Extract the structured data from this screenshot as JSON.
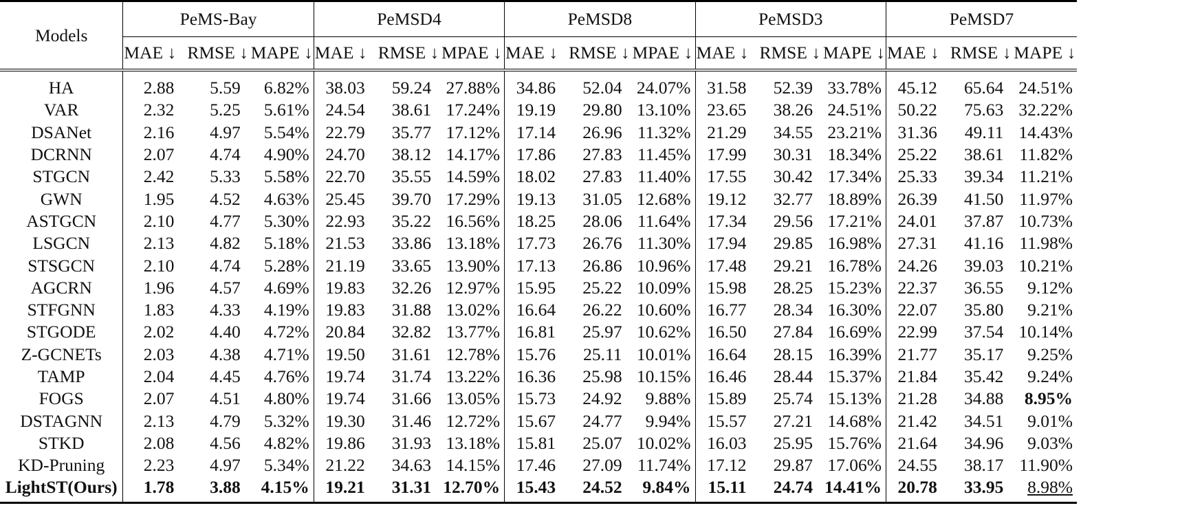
{
  "table": {
    "models_header": "Models",
    "datasets": [
      "PeMS-Bay",
      "PeMSD4",
      "PeMSD8",
      "PeMSD3",
      "PeMSD7"
    ],
    "metrics": [
      [
        "MAE ↓",
        "RMSE ↓",
        "MAPE ↓"
      ],
      [
        "MAE ↓",
        "RMSE ↓",
        "MPAE ↓"
      ],
      [
        "MAE ↓",
        "RMSE ↓",
        "MPAE ↓"
      ],
      [
        "MAE ↓",
        "RMSE ↓",
        "MAPE ↓"
      ],
      [
        "MAE ↓",
        "RMSE ↓",
        "MAPE ↓"
      ]
    ],
    "rows": [
      {
        "model": "HA",
        "values": [
          "2.88",
          "5.59",
          "6.82%",
          "38.03",
          "59.24",
          "27.88%",
          "34.86",
          "52.04",
          "24.07%",
          "31.58",
          "52.39",
          "33.78%",
          "45.12",
          "65.64",
          "24.51%"
        ]
      },
      {
        "model": "VAR",
        "values": [
          "2.32",
          "5.25",
          "5.61%",
          "24.54",
          "38.61",
          "17.24%",
          "19.19",
          "29.80",
          "13.10%",
          "23.65",
          "38.26",
          "24.51%",
          "50.22",
          "75.63",
          "32.22%"
        ]
      },
      {
        "model": "DSANet",
        "values": [
          "2.16",
          "4.97",
          "5.54%",
          "22.79",
          "35.77",
          "17.12%",
          "17.14",
          "26.96",
          "11.32%",
          "21.29",
          "34.55",
          "23.21%",
          "31.36",
          "49.11",
          "14.43%"
        ]
      },
      {
        "model": "DCRNN",
        "values": [
          "2.07",
          "4.74",
          "4.90%",
          "24.70",
          "38.12",
          "14.17%",
          "17.86",
          "27.83",
          "11.45%",
          "17.99",
          "30.31",
          "18.34%",
          "25.22",
          "38.61",
          "11.82%"
        ]
      },
      {
        "model": "STGCN",
        "values": [
          "2.42",
          "5.33",
          "5.58%",
          "22.70",
          "35.55",
          "14.59%",
          "18.02",
          "27.83",
          "11.40%",
          "17.55",
          "30.42",
          "17.34%",
          "25.33",
          "39.34",
          "11.21%"
        ]
      },
      {
        "model": "GWN",
        "values": [
          "1.95",
          "4.52",
          "4.63%",
          "25.45",
          "39.70",
          "17.29%",
          "19.13",
          "31.05",
          "12.68%",
          "19.12",
          "32.77",
          "18.89%",
          "26.39",
          "41.50",
          "11.97%"
        ]
      },
      {
        "model": "ASTGCN",
        "values": [
          "2.10",
          "4.77",
          "5.30%",
          "22.93",
          "35.22",
          "16.56%",
          "18.25",
          "28.06",
          "11.64%",
          "17.34",
          "29.56",
          "17.21%",
          "24.01",
          "37.87",
          "10.73%"
        ]
      },
      {
        "model": "LSGCN",
        "values": [
          "2.13",
          "4.82",
          "5.18%",
          "21.53",
          "33.86",
          "13.18%",
          "17.73",
          "26.76",
          "11.30%",
          "17.94",
          "29.85",
          "16.98%",
          "27.31",
          "41.16",
          "11.98%"
        ]
      },
      {
        "model": "STSGCN",
        "values": [
          "2.10",
          "4.74",
          "5.28%",
          "21.19",
          "33.65",
          "13.90%",
          "17.13",
          "26.86",
          "10.96%",
          "17.48",
          "29.21",
          "16.78%",
          "24.26",
          "39.03",
          "10.21%"
        ]
      },
      {
        "model": "AGCRN",
        "values": [
          "1.96",
          "4.57",
          "4.69%",
          "19.83",
          "32.26",
          "12.97%",
          "15.95",
          "25.22",
          "10.09%",
          "15.98",
          "28.25",
          "15.23%",
          "22.37",
          "36.55",
          "9.12%"
        ]
      },
      {
        "model": "STFGNN",
        "values": [
          "1.83",
          "4.33",
          "4.19%",
          "19.83",
          "31.88",
          "13.02%",
          "16.64",
          "26.22",
          "10.60%",
          "16.77",
          "28.34",
          "16.30%",
          "22.07",
          "35.80",
          "9.21%"
        ]
      },
      {
        "model": "STGODE",
        "values": [
          "2.02",
          "4.40",
          "4.72%",
          "20.84",
          "32.82",
          "13.77%",
          "16.81",
          "25.97",
          "10.62%",
          "16.50",
          "27.84",
          "16.69%",
          "22.99",
          "37.54",
          "10.14%"
        ]
      },
      {
        "model": "Z-GCNETs",
        "values": [
          "2.03",
          "4.38",
          "4.71%",
          "19.50",
          "31.61",
          "12.78%",
          "15.76",
          "25.11",
          "10.01%",
          "16.64",
          "28.15",
          "16.39%",
          "21.77",
          "35.17",
          "9.25%"
        ]
      },
      {
        "model": "TAMP",
        "values": [
          "2.04",
          "4.45",
          "4.76%",
          "19.74",
          "31.74",
          "13.22%",
          "16.36",
          "25.98",
          "10.15%",
          "16.46",
          "28.44",
          "15.37%",
          "21.84",
          "35.42",
          "9.24%"
        ]
      },
      {
        "model": "FOGS",
        "values": [
          "2.07",
          "4.51",
          "4.80%",
          "19.74",
          "31.66",
          "13.05%",
          "15.73",
          "24.92",
          "9.88%",
          "15.89",
          "25.74",
          "15.13%",
          "21.28",
          "34.88",
          "8.95%"
        ]
      },
      {
        "model": "DSTAGNN",
        "values": [
          "2.13",
          "4.79",
          "5.32%",
          "19.30",
          "31.46",
          "12.72%",
          "15.67",
          "24.77",
          "9.94%",
          "15.57",
          "27.21",
          "14.68%",
          "21.42",
          "34.51",
          "9.01%"
        ]
      },
      {
        "model": "STKD",
        "values": [
          "2.08",
          "4.56",
          "4.82%",
          "19.86",
          "31.93",
          "13.18%",
          "15.81",
          "25.07",
          "10.02%",
          "16.03",
          "25.95",
          "15.76%",
          "21.64",
          "34.96",
          "9.03%"
        ]
      },
      {
        "model": "KD-Pruning",
        "values": [
          "2.23",
          "4.97",
          "5.34%",
          "21.22",
          "34.63",
          "14.15%",
          "17.46",
          "27.09",
          "11.74%",
          "17.12",
          "29.87",
          "17.06%",
          "24.55",
          "38.17",
          "11.90%"
        ]
      },
      {
        "model": "LightST(Ours)",
        "values": [
          "1.78",
          "3.88",
          "4.15%",
          "19.21",
          "31.31",
          "12.70%",
          "15.43",
          "24.52",
          "9.84%",
          "15.11",
          "24.74",
          "14.41%",
          "20.78",
          "33.95",
          "8.98%"
        ]
      }
    ],
    "emphasis": {
      "bold_model_rows": [
        18
      ],
      "bold_cells": [
        [
          18,
          0
        ],
        [
          18,
          1
        ],
        [
          18,
          2
        ],
        [
          18,
          3
        ],
        [
          18,
          4
        ],
        [
          18,
          5
        ],
        [
          18,
          6
        ],
        [
          18,
          7
        ],
        [
          18,
          8
        ],
        [
          18,
          9
        ],
        [
          18,
          10
        ],
        [
          18,
          11
        ],
        [
          18,
          12
        ],
        [
          18,
          13
        ],
        [
          14,
          14
        ]
      ],
      "underline_cells": [
        [
          18,
          14
        ]
      ]
    }
  }
}
